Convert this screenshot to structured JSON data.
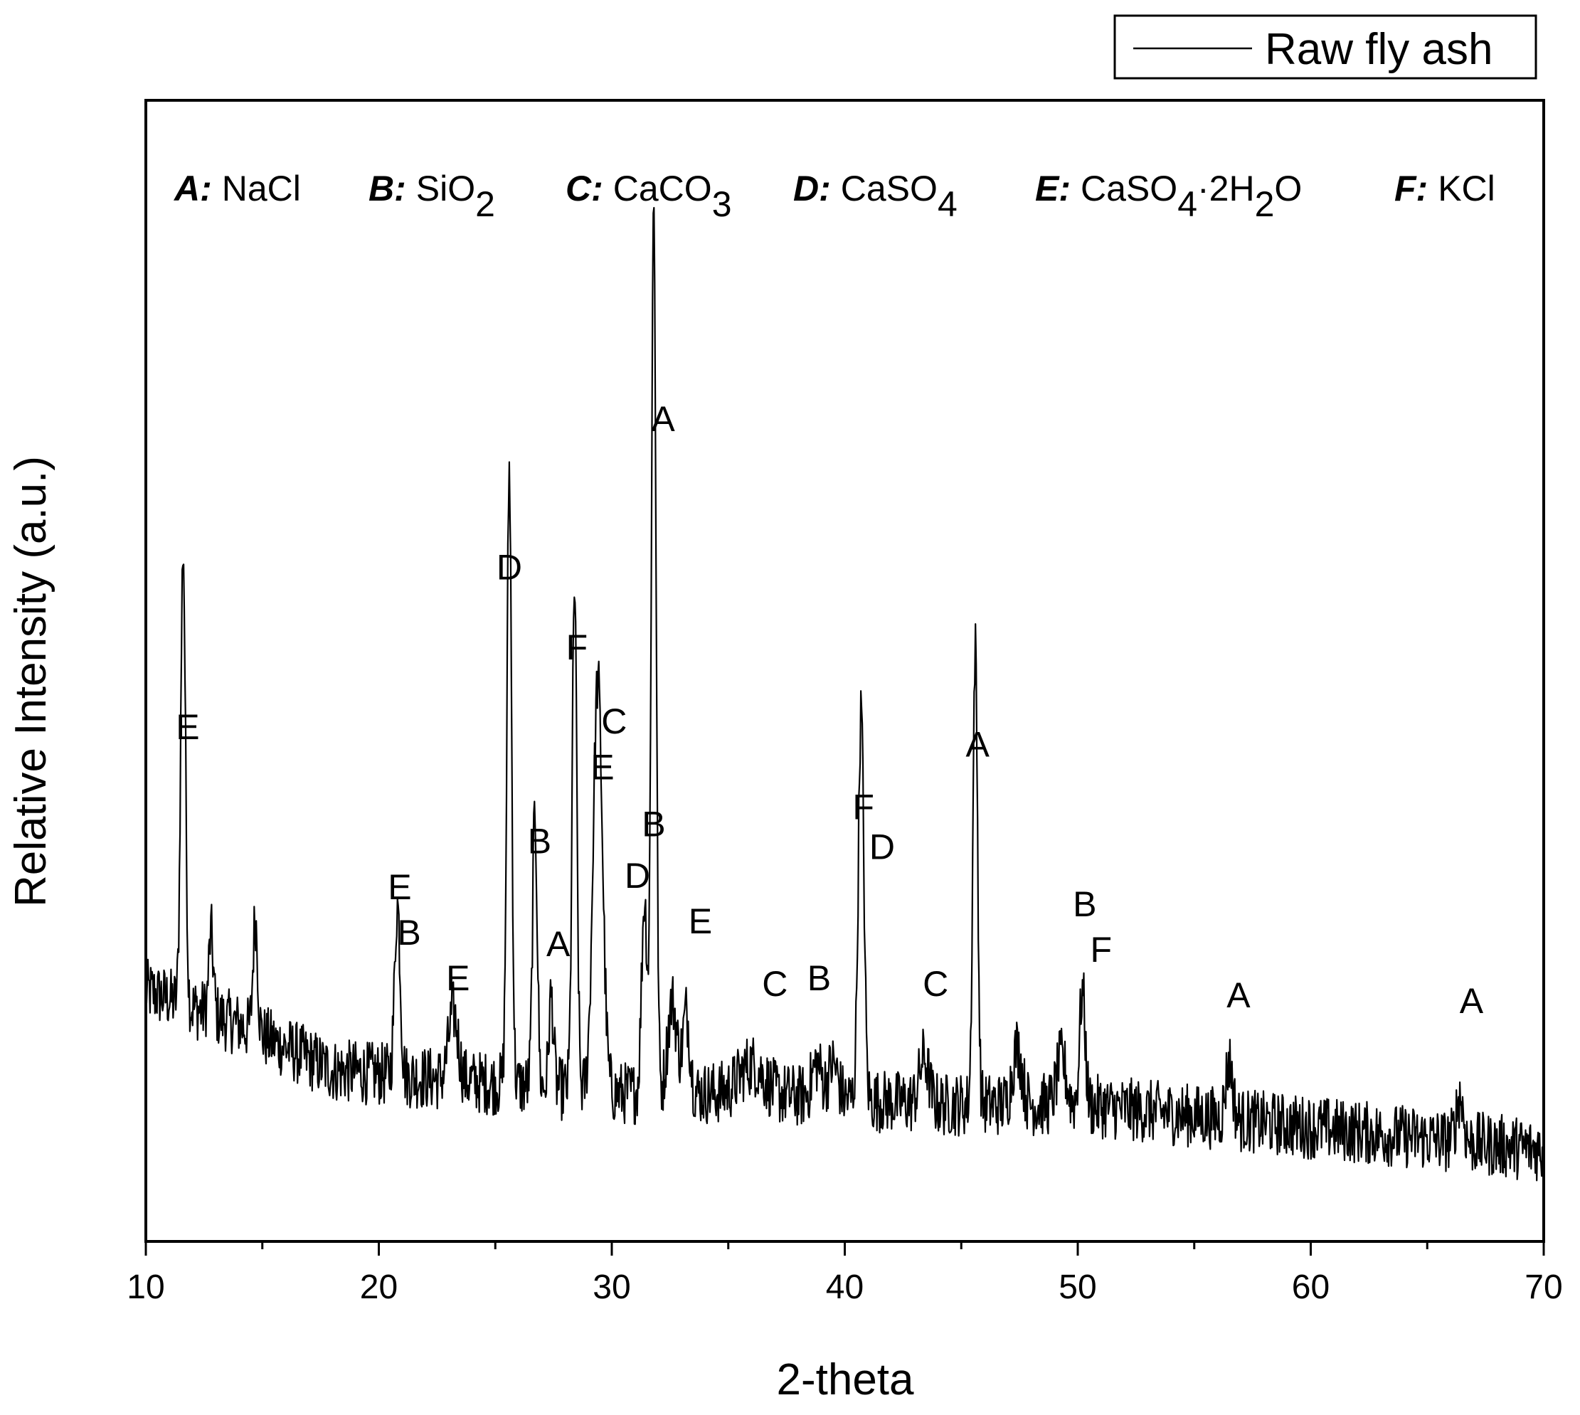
{
  "chart_data": {
    "type": "line",
    "xlabel": "2-theta",
    "ylabel": "Relative Intensity (a.u.)",
    "xlim": [
      10,
      70
    ],
    "ylim": [
      0,
      100
    ],
    "x_ticks": [
      "10",
      "20",
      "30",
      "40",
      "50",
      "60",
      "70"
    ],
    "y_ticks_visible": false,
    "grid": false,
    "line_color": "#000000",
    "legend": {
      "position": "top-right",
      "entries": [
        {
          "name": "Raw fly ash"
        }
      ]
    },
    "series": [
      {
        "name": "Raw fly ash",
        "peaks": [
          {
            "x": 11.6,
            "y": 40.0,
            "w": 0.1
          },
          {
            "x": 12.8,
            "y": 7.0,
            "w": 0.1
          },
          {
            "x": 14.7,
            "y": 10.0,
            "w": 0.1
          },
          {
            "x": 20.8,
            "y": 15.0,
            "w": 0.12
          },
          {
            "x": 23.2,
            "y": 6.0,
            "w": 0.2
          },
          {
            "x": 25.6,
            "y": 54.0,
            "w": 0.1
          },
          {
            "x": 26.7,
            "y": 24.0,
            "w": 0.1
          },
          {
            "x": 27.4,
            "y": 8.0,
            "w": 0.1
          },
          {
            "x": 28.4,
            "y": 44.0,
            "w": 0.1
          },
          {
            "x": 29.4,
            "y": 36.0,
            "w": 0.2
          },
          {
            "x": 31.4,
            "y": 17.0,
            "w": 0.12
          },
          {
            "x": 31.8,
            "y": 78.0,
            "w": 0.1
          },
          {
            "x": 32.6,
            "y": 8.0,
            "w": 0.2
          },
          {
            "x": 33.2,
            "y": 7.0,
            "w": 0.15
          },
          {
            "x": 36.0,
            "y": 2.5,
            "w": 0.5
          },
          {
            "x": 38.8,
            "y": 3.0,
            "w": 0.2
          },
          {
            "x": 39.5,
            "y": 3.0,
            "w": 0.2
          },
          {
            "x": 40.7,
            "y": 34.0,
            "w": 0.12
          },
          {
            "x": 43.4,
            "y": 4.0,
            "w": 0.2
          },
          {
            "x": 45.6,
            "y": 40.0,
            "w": 0.1
          },
          {
            "x": 47.4,
            "y": 5.0,
            "w": 0.2
          },
          {
            "x": 49.3,
            "y": 4.0,
            "w": 0.2
          },
          {
            "x": 50.2,
            "y": 10.0,
            "w": 0.12
          },
          {
            "x": 56.5,
            "y": 5.0,
            "w": 0.15
          },
          {
            "x": 66.4,
            "y": 4.0,
            "w": 0.15
          }
        ],
        "baseline": [
          [
            10,
            22
          ],
          [
            14,
            19
          ],
          [
            18,
            15
          ],
          [
            24,
            14
          ],
          [
            30,
            13
          ],
          [
            36,
            13
          ],
          [
            44,
            12
          ],
          [
            50,
            12
          ],
          [
            60,
            10
          ],
          [
            70,
            8
          ]
        ],
        "noise_amplitude": 2.8
      }
    ],
    "annotations": [
      {
        "text": "E",
        "x": 11.8,
        "y": 44
      },
      {
        "text": "E",
        "x": 20.9,
        "y": 30
      },
      {
        "text": "B",
        "x": 21.3,
        "y": 26
      },
      {
        "text": "E",
        "x": 23.4,
        "y": 22
      },
      {
        "text": "D",
        "x": 25.6,
        "y": 58
      },
      {
        "text": "B",
        "x": 26.9,
        "y": 34
      },
      {
        "text": "A",
        "x": 27.7,
        "y": 25
      },
      {
        "text": "F",
        "x": 28.5,
        "y": 51
      },
      {
        "text": "C",
        "x": 30.1,
        "y": 44.5
      },
      {
        "text": "E",
        "x": 29.6,
        "y": 40.5
      },
      {
        "text": "B",
        "x": 31.8,
        "y": 35.5
      },
      {
        "text": "D",
        "x": 31.1,
        "y": 31
      },
      {
        "text": "A",
        "x": 32.2,
        "y": 71
      },
      {
        "text": "E",
        "x": 33.8,
        "y": 27
      },
      {
        "text": "C",
        "x": 37.0,
        "y": 21.5
      },
      {
        "text": "B",
        "x": 38.9,
        "y": 22
      },
      {
        "text": "F",
        "x": 40.8,
        "y": 37
      },
      {
        "text": "D",
        "x": 41.6,
        "y": 33.5
      },
      {
        "text": "C",
        "x": 43.9,
        "y": 21.5
      },
      {
        "text": "A",
        "x": 45.7,
        "y": 42.5
      },
      {
        "text": "B",
        "x": 50.3,
        "y": 28.5
      },
      {
        "text": "F",
        "x": 51.0,
        "y": 24.5
      },
      {
        "text": "A",
        "x": 56.9,
        "y": 20.5
      },
      {
        "text": "A",
        "x": 66.9,
        "y": 20
      }
    ],
    "phase_key": [
      {
        "letter": "A",
        "sep": ":",
        "formula": [
          {
            "t": "NaCl"
          }
        ]
      },
      {
        "letter": "B",
        "sep": ":",
        "formula": [
          {
            "t": "SiO"
          },
          {
            "t": "2",
            "sub": true
          }
        ]
      },
      {
        "letter": "C",
        "sep": ":",
        "formula": [
          {
            "t": "CaCO"
          },
          {
            "t": "3",
            "sub": true
          }
        ]
      },
      {
        "letter": "D",
        "sep": ":",
        "formula": [
          {
            "t": "CaSO"
          },
          {
            "t": "4",
            "sub": true
          }
        ]
      },
      {
        "letter": "E",
        "sep": ":",
        "formula": [
          {
            "t": "CaSO"
          },
          {
            "t": "4",
            "sub": true
          },
          {
            "t": "·2H"
          },
          {
            "t": "2",
            "sub": true
          },
          {
            "t": "O"
          }
        ]
      },
      {
        "letter": "F",
        "sep": ":",
        "formula": [
          {
            "t": "KCl"
          }
        ]
      }
    ]
  }
}
